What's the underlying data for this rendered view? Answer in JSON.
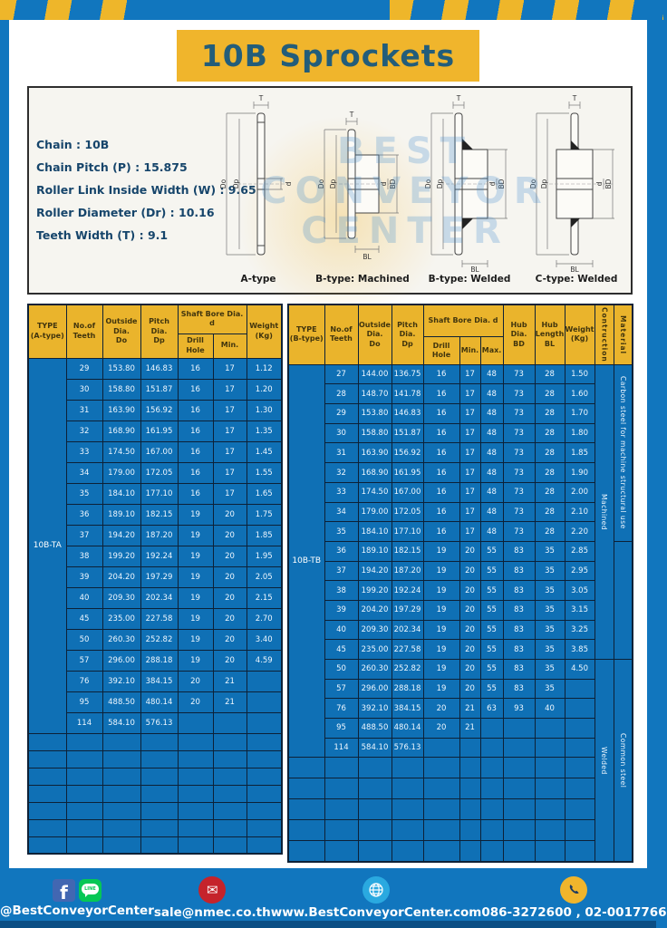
{
  "banner": {
    "title": "10B Sprockets"
  },
  "specs": {
    "lines": [
      "Chain : 10B",
      "Chain Pitch (P) : 15.875",
      "Roller Link Inside Width (W) : 9.65",
      "Roller Diameter (Dr) : 10.16",
      "Teeth Width (T) : 9.1"
    ]
  },
  "watermark": {
    "line1": "BEST",
    "line2": "CONVEYOR",
    "line3": "CENTER"
  },
  "diagrams": {
    "dims": {
      "t": "T",
      "do": "Do",
      "dp": "Dp",
      "d": "d",
      "bd": "BD",
      "bl": "BL"
    },
    "captions": [
      "A-type",
      "B-type: Machined",
      "B-type: Welded",
      "C-type: Welded"
    ]
  },
  "left_table": {
    "type_label": "10B-TA",
    "header": {
      "type": "TYPE\n(A-type)",
      "teeth": "No.of\nTeeth",
      "outside": "Outside\nDia.\nDo",
      "pitch": "Pitch Dia.\nDp",
      "shaft": "Shaft Bore Dia. d",
      "drill": "Drill Hole",
      "min": "Min.",
      "weight": "Weight\n(Kg)"
    },
    "rows": [
      [
        "29",
        "153.80",
        "146.83",
        "16",
        "17",
        "1.12"
      ],
      [
        "30",
        "158.80",
        "151.87",
        "16",
        "17",
        "1.20"
      ],
      [
        "31",
        "163.90",
        "156.92",
        "16",
        "17",
        "1.30"
      ],
      [
        "32",
        "168.90",
        "161.95",
        "16",
        "17",
        "1.35"
      ],
      [
        "33",
        "174.50",
        "167.00",
        "16",
        "17",
        "1.45"
      ],
      [
        "34",
        "179.00",
        "172.05",
        "16",
        "17",
        "1.55"
      ],
      [
        "35",
        "184.10",
        "177.10",
        "16",
        "17",
        "1.65"
      ],
      [
        "36",
        "189.10",
        "182.15",
        "19",
        "20",
        "1.75"
      ],
      [
        "37",
        "194.20",
        "187.20",
        "19",
        "20",
        "1.85"
      ],
      [
        "38",
        "199.20",
        "192.24",
        "19",
        "20",
        "1.95"
      ],
      [
        "39",
        "204.20",
        "197.29",
        "19",
        "20",
        "2.05"
      ],
      [
        "40",
        "209.30",
        "202.34",
        "19",
        "20",
        "2.15"
      ],
      [
        "45",
        "235.00",
        "227.58",
        "19",
        "20",
        "2.70"
      ],
      [
        "50",
        "260.30",
        "252.82",
        "19",
        "20",
        "3.40"
      ],
      [
        "57",
        "296.00",
        "288.18",
        "19",
        "20",
        "4.59"
      ],
      [
        "76",
        "392.10",
        "384.15",
        "20",
        "21",
        ""
      ],
      [
        "95",
        "488.50",
        "480.14",
        "20",
        "21",
        ""
      ],
      [
        "114",
        "584.10",
        "576.13",
        "",
        "",
        ""
      ]
    ],
    "empty_rows": 7
  },
  "right_table": {
    "type_label": "10B-TB",
    "header": {
      "type": "TYPE\n(B-type)",
      "teeth": "No.of\nTeeth",
      "outside": "Outside\nDia.\nDo",
      "pitch": "Pitch Dia.\nDp",
      "shaft": "Shaft Bore Dia. d",
      "drill": "Drill Hole",
      "min": "Min.",
      "max": "Max.",
      "hub_dia": "Hub Dia.\nBD",
      "hub_len": "Hub\nLength\nBL",
      "weight": "Weight\n(Kg)",
      "construction": "Contruction",
      "material": "Material"
    },
    "rows": [
      [
        "27",
        "144.00",
        "136.75",
        "16",
        "17",
        "48",
        "73",
        "28",
        "1.50"
      ],
      [
        "28",
        "148.70",
        "141.78",
        "16",
        "17",
        "48",
        "73",
        "28",
        "1.60"
      ],
      [
        "29",
        "153.80",
        "146.83",
        "16",
        "17",
        "48",
        "73",
        "28",
        "1.70"
      ],
      [
        "30",
        "158.80",
        "151.87",
        "16",
        "17",
        "48",
        "73",
        "28",
        "1.80"
      ],
      [
        "31",
        "163.90",
        "156.92",
        "16",
        "17",
        "48",
        "73",
        "28",
        "1.85"
      ],
      [
        "32",
        "168.90",
        "161.95",
        "16",
        "17",
        "48",
        "73",
        "28",
        "1.90"
      ],
      [
        "33",
        "174.50",
        "167.00",
        "16",
        "17",
        "48",
        "73",
        "28",
        "2.00"
      ],
      [
        "34",
        "179.00",
        "172.05",
        "16",
        "17",
        "48",
        "73",
        "28",
        "2.10"
      ],
      [
        "35",
        "184.10",
        "177.10",
        "16",
        "17",
        "48",
        "73",
        "28",
        "2.20"
      ],
      [
        "36",
        "189.10",
        "182.15",
        "19",
        "20",
        "55",
        "83",
        "35",
        "2.85"
      ],
      [
        "37",
        "194.20",
        "187.20",
        "19",
        "20",
        "55",
        "83",
        "35",
        "2.95"
      ],
      [
        "38",
        "199.20",
        "192.24",
        "19",
        "20",
        "55",
        "83",
        "35",
        "3.05"
      ],
      [
        "39",
        "204.20",
        "197.29",
        "19",
        "20",
        "55",
        "83",
        "35",
        "3.15"
      ],
      [
        "40",
        "209.30",
        "202.34",
        "19",
        "20",
        "55",
        "83",
        "35",
        "3.25"
      ],
      [
        "45",
        "235.00",
        "227.58",
        "19",
        "20",
        "55",
        "83",
        "35",
        "3.85"
      ],
      [
        "50",
        "260.30",
        "252.82",
        "19",
        "20",
        "55",
        "83",
        "35",
        "4.50"
      ],
      [
        "57",
        "296.00",
        "288.18",
        "19",
        "20",
        "55",
        "83",
        "35",
        ""
      ],
      [
        "76",
        "392.10",
        "384.15",
        "20",
        "21",
        "63",
        "93",
        "40",
        ""
      ],
      [
        "95",
        "488.50",
        "480.14",
        "20",
        "21",
        "",
        "",
        "",
        ""
      ],
      [
        "114",
        "584.10",
        "576.13",
        "",
        "",
        "",
        "",
        "",
        ""
      ]
    ],
    "construction_cells": [
      {
        "row": 0,
        "span": 15,
        "label": "Machined"
      },
      {
        "row": 15,
        "span": 10,
        "label": "Welded"
      }
    ],
    "material_cells": [
      {
        "row": 0,
        "span": 9,
        "label": "Carbon steel for machine structural use"
      },
      {
        "row": 9,
        "span": 6,
        "label": ""
      },
      {
        "row": 15,
        "span": 10,
        "label": "Common steel"
      }
    ],
    "empty_rows": 5
  },
  "footer": {
    "fb_glyph": "f",
    "line_text": "LINE",
    "social": "@BestConveyorCenter",
    "mail_glyph": "✉",
    "email": "sale@nmec.co.th",
    "website": "www.BestConveyorCenter.com",
    "phones": "086-3272600 , 02-0017766"
  },
  "colors": {
    "frame_blue": "#1176be",
    "cell_blue": "#0f70b5",
    "grid_navy": "#0d2137",
    "header_yellow": "#eab42c",
    "banner_yellow": "#f0b52c",
    "banner_text": "#235d7a"
  }
}
